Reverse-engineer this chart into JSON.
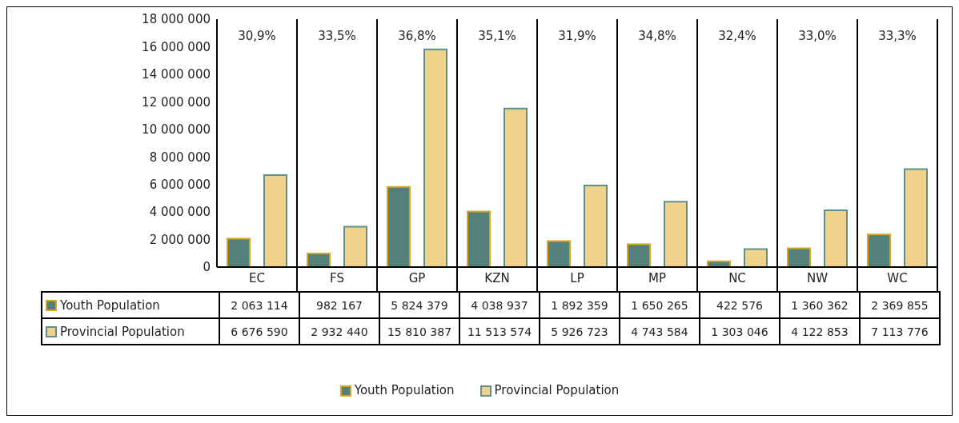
{
  "chart_data": {
    "type": "bar",
    "categories": [
      "EC",
      "FS",
      "GP",
      "KZN",
      "LP",
      "MP",
      "NC",
      "NW",
      "WC"
    ],
    "series": [
      {
        "name": "Youth Population",
        "color": "#54807a",
        "values": [
          2063114,
          982167,
          5824379,
          4038937,
          1892359,
          1650265,
          422576,
          1360362,
          2369855
        ]
      },
      {
        "name": "Provincial Population",
        "color": "#f0d28a",
        "values": [
          6676590,
          2932440,
          15810387,
          11513574,
          5926723,
          4743584,
          1303046,
          4122853,
          7113776
        ]
      }
    ],
    "ylim": [
      0,
      18000000
    ],
    "yticks": [
      {
        "value": 0,
        "label": "0"
      },
      {
        "value": 2000000,
        "label": "2 000 000"
      },
      {
        "value": 4000000,
        "label": "4 000 000"
      },
      {
        "value": 6000000,
        "label": "6 000 000"
      },
      {
        "value": 8000000,
        "label": "8 000 000"
      },
      {
        "value": 10000000,
        "label": "10 000 000"
      },
      {
        "value": 12000000,
        "label": "12 000 000"
      },
      {
        "value": 14000000,
        "label": "14 000 000"
      },
      {
        "value": 16000000,
        "label": "16 000 000"
      },
      {
        "value": 18000000,
        "label": "18 000 000"
      }
    ],
    "annotations": [
      "30,9%",
      "33,5%",
      "36,8%",
      "35,1%",
      "31,9%",
      "34,8%",
      "32,4%",
      "33,0%",
      "33,3%"
    ],
    "data_labels": true,
    "grid": false,
    "legend": "bottom"
  }
}
